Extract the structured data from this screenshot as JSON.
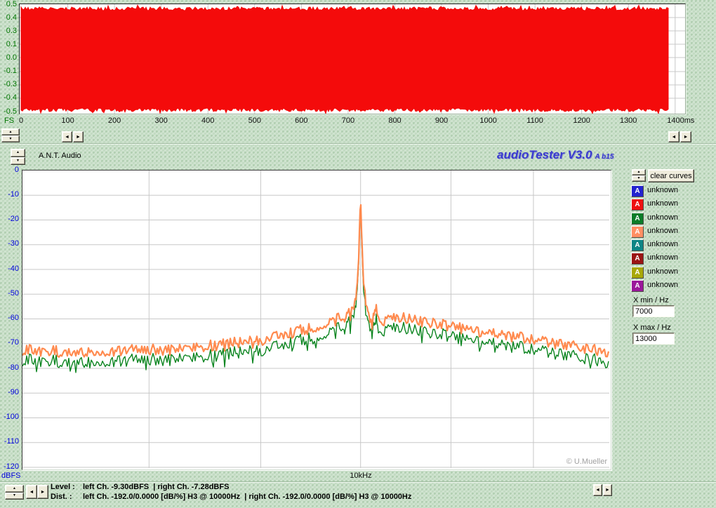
{
  "app": {
    "device_label": "A.N.T. Audio",
    "logo": "audioTester V3.0",
    "logo_suffix": "A b15",
    "copyright": "© U.Mueller"
  },
  "icons": {
    "up": "▲",
    "down": "▼",
    "left": "◄",
    "right": "►",
    "curve_letter": "A"
  },
  "waveform_panel": {
    "fs_label": "FS"
  },
  "spectrum_panel": {
    "y_unit_label": "dBFS",
    "x_tick_text": "10kHz"
  },
  "sidebar": {
    "clear_button_label": "clear curves",
    "curves": [
      {
        "color": "#2323cf",
        "label": "unknown"
      },
      {
        "color": "#ee1111",
        "label": "unknown"
      },
      {
        "color": "#0a7c28",
        "label": "unknown"
      },
      {
        "color": "#ff8f63",
        "label": "unknown"
      },
      {
        "color": "#0e8585",
        "label": "unknown"
      },
      {
        "color": "#9a1414",
        "label": "unknown"
      },
      {
        "color": "#a8a808",
        "label": "unknown"
      },
      {
        "color": "#9a189a",
        "label": "unknown"
      }
    ],
    "xmin_label": "X min / Hz",
    "xmin_value": "7000",
    "xmax_label": "X max / Hz",
    "xmax_value": "13000"
  },
  "statusbar": {
    "level_label": "Level :",
    "level_value": "left Ch. -9.30dBFS  | right Ch. -7.28dBFS",
    "dist_label": "Dist. :",
    "dist_value": "left Ch. -192.0/0.0000 [dB/%] H3 @ 10000Hz  | right Ch. -192.0/0.0000 [dB/%] H3 @ 10000Hz"
  },
  "chart_data": [
    {
      "type": "area",
      "name": "time_domain_waveform",
      "title": "",
      "x_unit": "ms",
      "x_range": [
        0,
        1400
      ],
      "x_ticks": [
        0,
        100,
        200,
        300,
        400,
        500,
        600,
        700,
        800,
        900,
        1000,
        1100,
        1200,
        1300,
        1400
      ],
      "y_unit": "FS",
      "y_ticks": [
        0.5,
        0.4,
        0.3,
        0.1,
        0.0,
        -0.1,
        -0.3,
        -0.4,
        -0.5
      ],
      "signal_span_ms": [
        0,
        1388
      ],
      "signal_envelope_fs": [
        -0.45,
        0.45
      ],
      "color": "#f40b0b",
      "grid": true,
      "noise_seed": 13
    },
    {
      "type": "line",
      "name": "fft_spectrum",
      "x_scale": "log",
      "x_unit": "Hz",
      "x_range": [
        7000,
        13000
      ],
      "x_gridlines": [
        8000,
        9000,
        10000,
        11000,
        12000
      ],
      "x_tick_label": {
        "hz": 10000,
        "text": "10kHz"
      },
      "y_unit": "dBFS",
      "y_range": [
        0,
        -120
      ],
      "y_ticks": [
        0,
        -10,
        -20,
        -30,
        -40,
        -50,
        -60,
        -70,
        -80,
        -90,
        -100,
        -110,
        -120
      ],
      "grid": true,
      "noise_seed": 29,
      "series": [
        {
          "name": "right_channel_curve",
          "color": "#0c8520",
          "stroke_width": 1.4,
          "jitter_db": 2.6,
          "spike_db": 4.5,
          "points": [
            [
              7000,
              -76.5
            ],
            [
              7400,
              -77.5
            ],
            [
              7800,
              -76.5
            ],
            [
              8200,
              -76.5
            ],
            [
              8600,
              -74.5
            ],
            [
              9000,
              -72.5
            ],
            [
              9300,
              -69.5
            ],
            [
              9600,
              -66
            ],
            [
              9800,
              -63.5
            ],
            [
              9900,
              -61
            ],
            [
              9950,
              -55
            ],
            [
              9978,
              -40
            ],
            [
              9992,
              -20
            ],
            [
              10000,
              -12.5
            ],
            [
              10010,
              -28
            ],
            [
              10030,
              -47
            ],
            [
              10060,
              -58
            ],
            [
              10090,
              -63.5
            ],
            [
              10120,
              -66
            ],
            [
              10155,
              -58.5
            ],
            [
              10185,
              -63
            ],
            [
              10250,
              -65
            ],
            [
              10350,
              -63.5
            ],
            [
              10500,
              -63.5
            ],
            [
              10700,
              -65
            ],
            [
              11000,
              -67
            ],
            [
              11300,
              -68.5
            ],
            [
              11600,
              -70.5
            ],
            [
              12000,
              -72.5
            ],
            [
              12300,
              -74
            ],
            [
              12600,
              -75.5
            ],
            [
              13000,
              -77.5
            ]
          ]
        },
        {
          "name": "left_channel_curve",
          "color": "#ff8a4e",
          "stroke_width": 2.2,
          "jitter_db": 2.3,
          "spike_db": 1.5,
          "points": [
            [
              7000,
              -72.5
            ],
            [
              7400,
              -73.5
            ],
            [
              7800,
              -72.5
            ],
            [
              8200,
              -72.5
            ],
            [
              8600,
              -70.5
            ],
            [
              9000,
              -68.5
            ],
            [
              9300,
              -65.5
            ],
            [
              9600,
              -62
            ],
            [
              9800,
              -59.5
            ],
            [
              9900,
              -57.5
            ],
            [
              9950,
              -52
            ],
            [
              9978,
              -38
            ],
            [
              9992,
              -18
            ],
            [
              10000,
              -10.5
            ],
            [
              10010,
              -25
            ],
            [
              10030,
              -44
            ],
            [
              10060,
              -54
            ],
            [
              10090,
              -60
            ],
            [
              10120,
              -62.5
            ],
            [
              10155,
              -54.5
            ],
            [
              10185,
              -59
            ],
            [
              10250,
              -61
            ],
            [
              10350,
              -59.5
            ],
            [
              10500,
              -59.5
            ],
            [
              10700,
              -61
            ],
            [
              11000,
              -63
            ],
            [
              11300,
              -64.5
            ],
            [
              11600,
              -66.5
            ],
            [
              12000,
              -68.5
            ],
            [
              12300,
              -70
            ],
            [
              12600,
              -71.5
            ],
            [
              13000,
              -73.5
            ]
          ]
        }
      ]
    }
  ]
}
